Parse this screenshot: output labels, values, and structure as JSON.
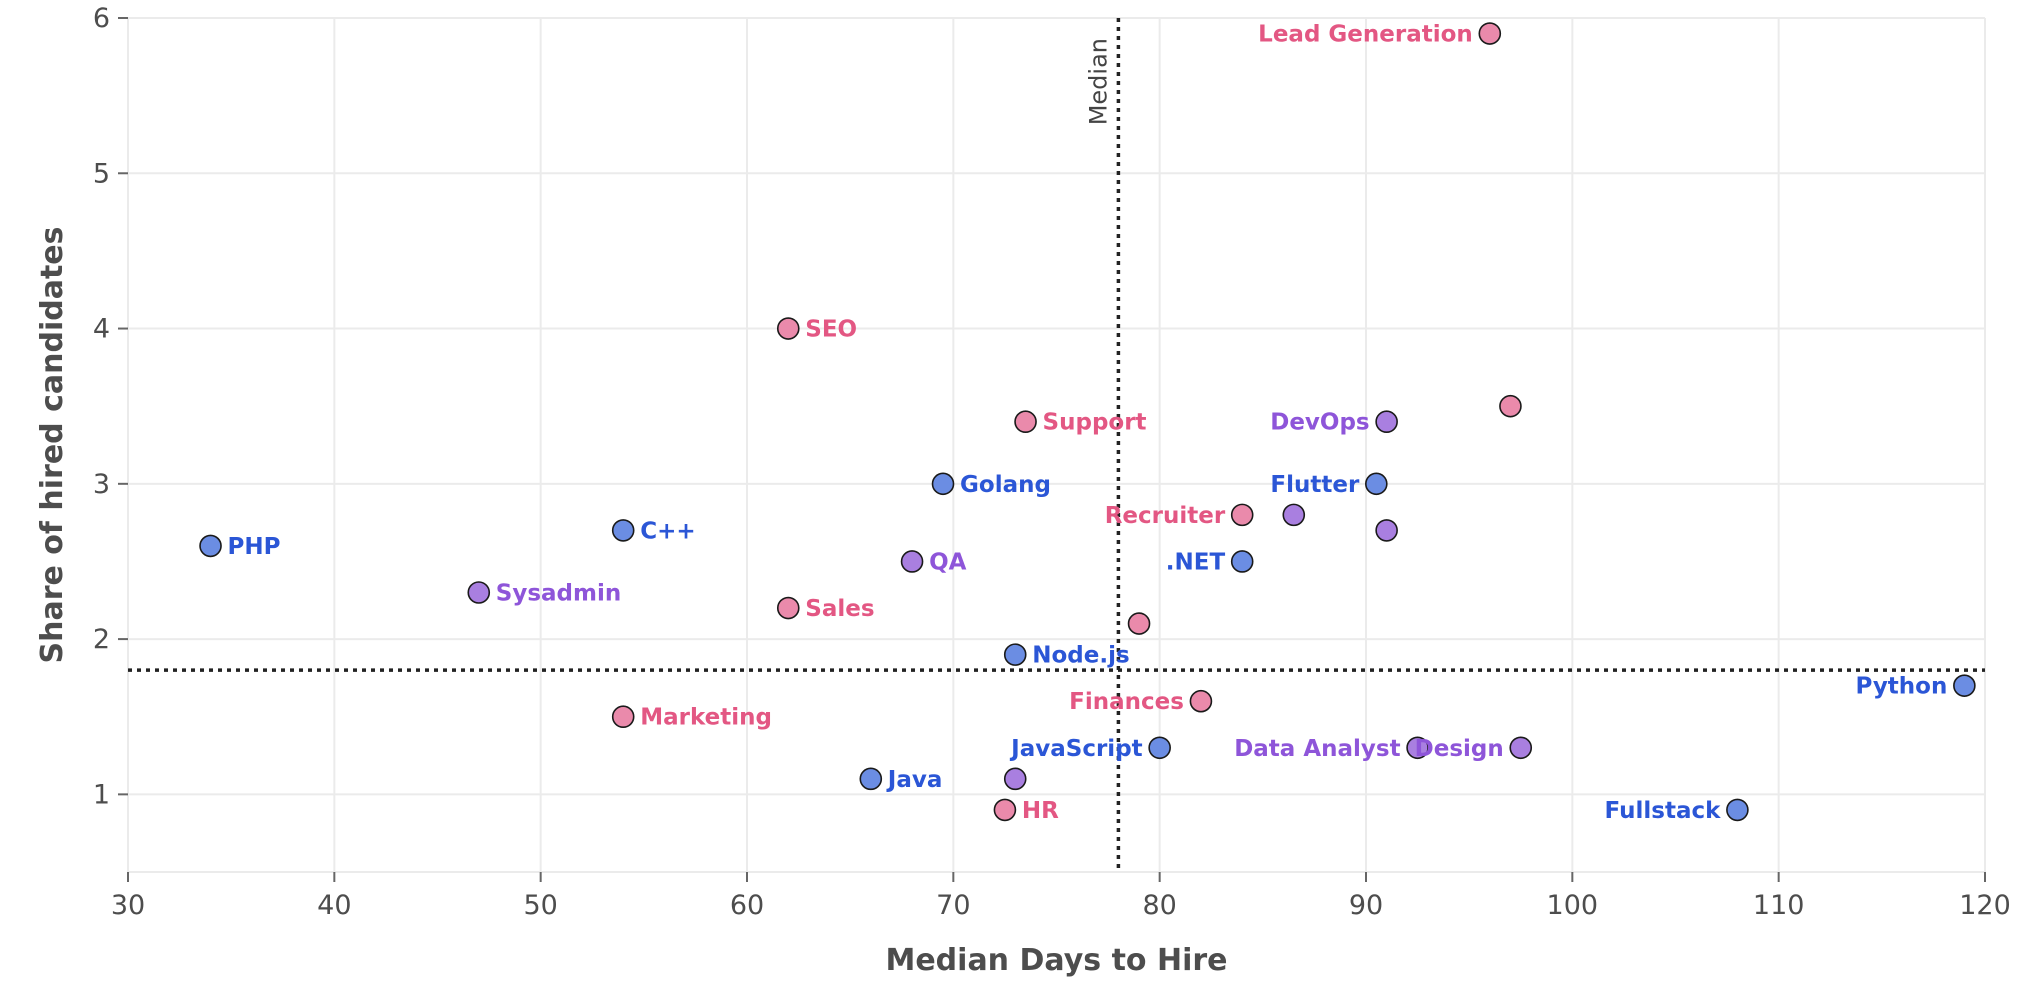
{
  "chart_data": {
    "type": "scatter",
    "title": "",
    "xlabel": "Median Days to Hire",
    "ylabel": "Share of hired candidates",
    "xlim": [
      30,
      120
    ],
    "ylim": [
      0.5,
      6
    ],
    "x_ticks": [
      30,
      40,
      50,
      60,
      70,
      80,
      90,
      100,
      110,
      120
    ],
    "y_ticks": [
      1,
      2,
      3,
      4,
      5,
      6
    ],
    "grid": true,
    "median_x": 78,
    "median_y": 1.8,
    "median_label": "Median",
    "colors": {
      "blue": "#6b8de3",
      "pink": "#ea8aab",
      "purple": "#a97fe0"
    },
    "label_colors": {
      "blue": "#2b56d6",
      "pink": "#e35783",
      "purple": "#8e55d9"
    },
    "points": [
      {
        "label": "Lead Generation",
        "x": 96,
        "y": 5.9,
        "group": "pink",
        "side": "left"
      },
      {
        "label": "SEO",
        "x": 62,
        "y": 4.0,
        "group": "pink",
        "side": "right"
      },
      {
        "label": "Support",
        "x": 73.5,
        "y": 3.4,
        "group": "pink",
        "side": "right"
      },
      {
        "label": "DevOps",
        "x": 91,
        "y": 3.4,
        "group": "purple",
        "side": "left"
      },
      {
        "label": "",
        "x": 97,
        "y": 3.5,
        "group": "pink",
        "side": "right"
      },
      {
        "label": "Golang",
        "x": 69.5,
        "y": 3.0,
        "group": "blue",
        "side": "right"
      },
      {
        "label": "Flutter",
        "x": 90.5,
        "y": 3.0,
        "group": "blue",
        "side": "left"
      },
      {
        "label": "Recruiter",
        "x": 84,
        "y": 2.8,
        "group": "pink",
        "side": "left"
      },
      {
        "label": "",
        "x": 86.5,
        "y": 2.8,
        "group": "purple",
        "side": "right"
      },
      {
        "label": "",
        "x": 91,
        "y": 2.7,
        "group": "purple",
        "side": "right"
      },
      {
        "label": "C++",
        "x": 54,
        "y": 2.7,
        "group": "blue",
        "side": "right"
      },
      {
        "label": "PHP",
        "x": 34,
        "y": 2.6,
        "group": "blue",
        "side": "right"
      },
      {
        "label": "QA",
        "x": 68,
        "y": 2.5,
        "group": "purple",
        "side": "right"
      },
      {
        "label": ".NET",
        "x": 84,
        "y": 2.5,
        "group": "blue",
        "side": "left"
      },
      {
        "label": "Sysadmin",
        "x": 47,
        "y": 2.3,
        "group": "purple",
        "side": "right"
      },
      {
        "label": "Sales",
        "x": 62,
        "y": 2.2,
        "group": "pink",
        "side": "right"
      },
      {
        "label": "",
        "x": 79,
        "y": 2.1,
        "group": "pink",
        "side": "right"
      },
      {
        "label": "Node.js",
        "x": 73,
        "y": 1.9,
        "group": "blue",
        "side": "right"
      },
      {
        "label": "Python",
        "x": 119,
        "y": 1.7,
        "group": "blue",
        "side": "left"
      },
      {
        "label": "Finances",
        "x": 82,
        "y": 1.6,
        "group": "pink",
        "side": "left"
      },
      {
        "label": "Marketing",
        "x": 54,
        "y": 1.5,
        "group": "pink",
        "side": "right"
      },
      {
        "label": "JavaScript",
        "x": 80,
        "y": 1.3,
        "group": "blue",
        "side": "left"
      },
      {
        "label": "Data Analyst",
        "x": 92.5,
        "y": 1.3,
        "group": "purple",
        "side": "left"
      },
      {
        "label": "Design",
        "x": 97.5,
        "y": 1.3,
        "group": "purple",
        "side": "left"
      },
      {
        "label": "Java",
        "x": 66,
        "y": 1.1,
        "group": "blue",
        "side": "right"
      },
      {
        "label": "",
        "x": 73,
        "y": 1.1,
        "group": "purple",
        "side": "right"
      },
      {
        "label": "HR",
        "x": 72.5,
        "y": 0.9,
        "group": "pink",
        "side": "right"
      },
      {
        "label": "Fullstack",
        "x": 108,
        "y": 0.9,
        "group": "blue",
        "side": "left"
      }
    ]
  }
}
